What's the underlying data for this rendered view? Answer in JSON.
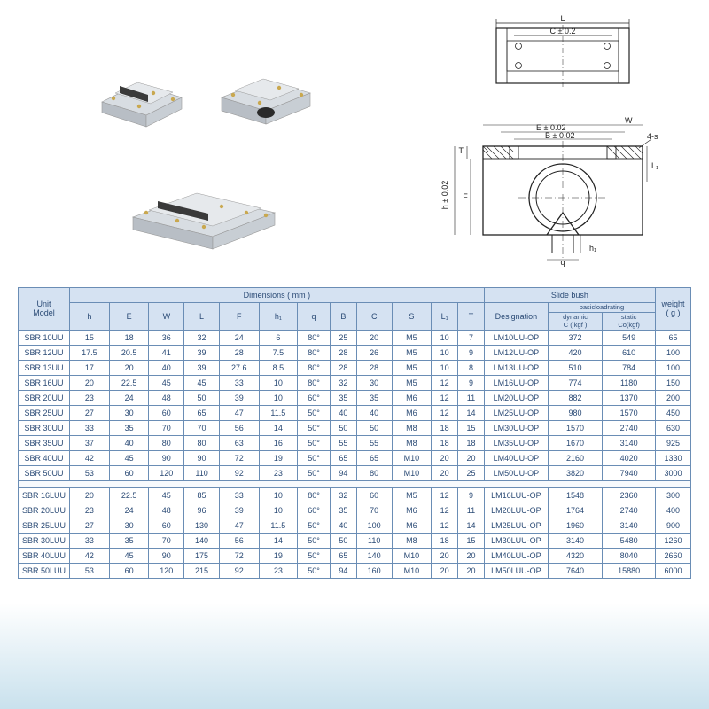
{
  "table": {
    "title_unit": "Unit\nModel",
    "group_dims": "Dimensions ( mm )",
    "group_slide": "Slide bush",
    "group_weight": "weight\n( g )",
    "dim_cols": [
      "h",
      "E",
      "W",
      "L",
      "F",
      "h₁",
      "q",
      "B",
      "C",
      "S",
      "L₁",
      "T"
    ],
    "slide_cols": [
      "Designation",
      "basicloadrating"
    ],
    "rating_sub": [
      "dynamic\nC ( kgf )",
      "static\nCo(kgf)"
    ],
    "rows1": [
      [
        "SBR 10UU",
        "15",
        "18",
        "36",
        "32",
        "24",
        "6",
        "80°",
        "25",
        "20",
        "M5",
        "10",
        "7",
        "LM10UU-OP",
        "372",
        "549",
        "65"
      ],
      [
        "SBR 12UU",
        "17.5",
        "20.5",
        "41",
        "39",
        "28",
        "7.5",
        "80°",
        "28",
        "26",
        "M5",
        "10",
        "9",
        "LM12UU-OP",
        "420",
        "610",
        "100"
      ],
      [
        "SBR 13UU",
        "17",
        "20",
        "40",
        "39",
        "27.6",
        "8.5",
        "80°",
        "28",
        "28",
        "M5",
        "10",
        "8",
        "LM13UU-OP",
        "510",
        "784",
        "100"
      ],
      [
        "SBR 16UU",
        "20",
        "22.5",
        "45",
        "45",
        "33",
        "10",
        "80°",
        "32",
        "30",
        "M5",
        "12",
        "9",
        "LM16UU-OP",
        "774",
        "1180",
        "150"
      ],
      [
        "SBR 20UU",
        "23",
        "24",
        "48",
        "50",
        "39",
        "10",
        "60°",
        "35",
        "35",
        "M6",
        "12",
        "11",
        "LM20UU-OP",
        "882",
        "1370",
        "200"
      ],
      [
        "SBR 25UU",
        "27",
        "30",
        "60",
        "65",
        "47",
        "11.5",
        "50°",
        "40",
        "40",
        "M6",
        "12",
        "14",
        "LM25UU-OP",
        "980",
        "1570",
        "450"
      ],
      [
        "SBR 30UU",
        "33",
        "35",
        "70",
        "70",
        "56",
        "14",
        "50°",
        "50",
        "50",
        "M8",
        "18",
        "15",
        "LM30UU-OP",
        "1570",
        "2740",
        "630"
      ],
      [
        "SBR 35UU",
        "37",
        "40",
        "80",
        "80",
        "63",
        "16",
        "50°",
        "55",
        "55",
        "M8",
        "18",
        "18",
        "LM35UU-OP",
        "1670",
        "3140",
        "925"
      ],
      [
        "SBR 40UU",
        "42",
        "45",
        "90",
        "90",
        "72",
        "19",
        "50°",
        "65",
        "65",
        "M10",
        "20",
        "20",
        "LM40UU-OP",
        "2160",
        "4020",
        "1330"
      ],
      [
        "SBR 50UU",
        "53",
        "60",
        "120",
        "110",
        "92",
        "23",
        "50°",
        "94",
        "80",
        "M10",
        "20",
        "25",
        "LM50UU-OP",
        "3820",
        "7940",
        "3000"
      ]
    ],
    "rows2": [
      [
        "SBR 16LUU",
        "20",
        "22.5",
        "45",
        "85",
        "33",
        "10",
        "80°",
        "32",
        "60",
        "M5",
        "12",
        "9",
        "LM16LUU-OP",
        "1548",
        "2360",
        "300"
      ],
      [
        "SBR 20LUU",
        "23",
        "24",
        "48",
        "96",
        "39",
        "10",
        "60°",
        "35",
        "70",
        "M6",
        "12",
        "11",
        "LM20LUU-OP",
        "1764",
        "2740",
        "400"
      ],
      [
        "SBR 25LUU",
        "27",
        "30",
        "60",
        "130",
        "47",
        "11.5",
        "50°",
        "40",
        "100",
        "M6",
        "12",
        "14",
        "LM25LUU-OP",
        "1960",
        "3140",
        "900"
      ],
      [
        "SBR 30LUU",
        "33",
        "35",
        "70",
        "140",
        "56",
        "14",
        "50°",
        "50",
        "110",
        "M8",
        "18",
        "15",
        "LM30LUU-OP",
        "3140",
        "5480",
        "1260"
      ],
      [
        "SBR 40LUU",
        "42",
        "45",
        "90",
        "175",
        "72",
        "19",
        "50°",
        "65",
        "140",
        "M10",
        "20",
        "20",
        "LM40LUU-OP",
        "4320",
        "8040",
        "2660"
      ],
      [
        "SBR 50LUU",
        "53",
        "60",
        "120",
        "215",
        "92",
        "23",
        "50°",
        "94",
        "160",
        "M10",
        "20",
        "20",
        "LM50LUU-OP",
        "7640",
        "15880",
        "6000"
      ]
    ]
  },
  "diagram": {
    "labels": {
      "L": "L",
      "C": "C ± 0.2",
      "W": "W",
      "E": "E ± 0.02",
      "B": "B ± 0.02",
      "fours": "4-s",
      "T": "T",
      "L1": "L₁",
      "F": "F",
      "h": "h ± 0.02",
      "h1": "h₁",
      "q": "q"
    }
  },
  "style": {
    "header_bg": "#d5e2f2",
    "border": "#6a8db5",
    "text": "#2a4a75"
  }
}
